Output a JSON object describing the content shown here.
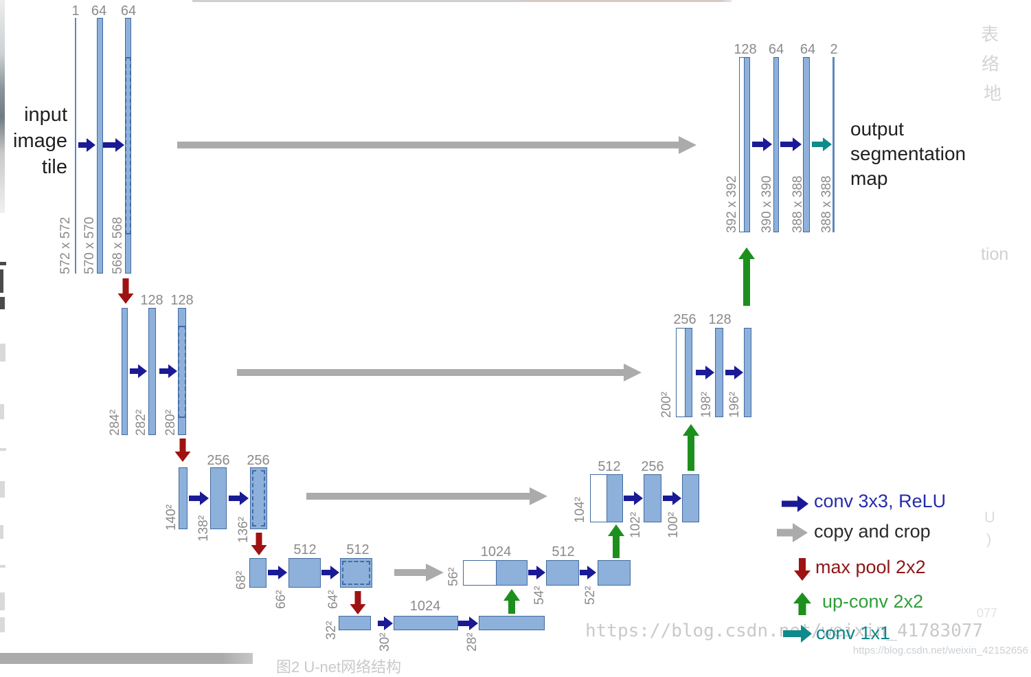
{
  "annotations": {
    "input_label_lines": [
      "input",
      "image",
      "tile"
    ],
    "output_label_lines": [
      "output",
      "segmentation",
      "map"
    ]
  },
  "network": {
    "groups": [
      {
        "id": "encoder-level-1",
        "channels": [
          "1",
          "64",
          "64"
        ],
        "sizes": [
          "572 x 572",
          "570 x 570",
          "568 x 568"
        ]
      },
      {
        "id": "encoder-level-2",
        "channels": [
          "128",
          "128"
        ],
        "sizes": [
          "284²",
          "282²",
          "280²"
        ]
      },
      {
        "id": "encoder-level-3",
        "channels": [
          "256",
          "256"
        ],
        "sizes": [
          "140²",
          "138²",
          "136²"
        ]
      },
      {
        "id": "encoder-level-4",
        "channels": [
          "512",
          "512"
        ],
        "sizes": [
          "68²",
          "66²",
          "64²"
        ]
      },
      {
        "id": "bottleneck",
        "channels": [
          "1024"
        ],
        "sizes": [
          "32²",
          "30²",
          "28²"
        ]
      },
      {
        "id": "decoder-level-4",
        "channels": [
          "1024",
          "512"
        ],
        "sizes": [
          "56²",
          "54²",
          "52²"
        ]
      },
      {
        "id": "decoder-level-3",
        "channels": [
          "512",
          "256"
        ],
        "sizes": [
          "104²",
          "102²",
          "100²"
        ]
      },
      {
        "id": "decoder-level-2",
        "channels": [
          "256",
          "128"
        ],
        "sizes": [
          "200²",
          "198²",
          "196²"
        ]
      },
      {
        "id": "decoder-level-1",
        "channels": [
          "128",
          "64",
          "64",
          "2"
        ],
        "sizes": [
          "392 x 392",
          "390 x 390",
          "388 x 388",
          "388 x 388"
        ]
      }
    ]
  },
  "legend": {
    "items": [
      {
        "id": "conv3x3",
        "label": "conv 3x3, ReLU",
        "color": "#232da8"
      },
      {
        "id": "copycrop",
        "label": "copy and crop",
        "color": "#2b2b2b"
      },
      {
        "id": "maxpool",
        "label": "max pool 2x2",
        "color": "#8e1616"
      },
      {
        "id": "upconv",
        "label": "up-conv 2x2",
        "color": "#2f9e38"
      },
      {
        "id": "conv1x1",
        "label": "conv 1x1",
        "color": "#0d8588"
      }
    ]
  },
  "watermarks": {
    "big": "https://blog.csdn.net/weixin_41783077",
    "small": "https://blog.csdn.net/weixin_42152656",
    "fragment_tion": "tion",
    "fragment_u": "U",
    "fragment_paren": ")",
    "fragment_num": "077",
    "cjk_column": [
      "表",
      "络",
      "地"
    ],
    "caption": "图2  U-net网络结构"
  },
  "colors": {
    "bar_fill": "#8db1da",
    "bar_border": "#41699e",
    "conv_arrow": "#1a1a96",
    "copy_arrow": "#ababab",
    "maxpool_arrow": "#9e1212",
    "upconv_arrow": "#1d8f1d",
    "conv1x1_arrow": "#0f8b8b",
    "size_label": "#8a8a8a",
    "channel_label": "#8a8a8a",
    "annotation_text": "#1f1f1f",
    "watermark": "#c9c9c9"
  }
}
